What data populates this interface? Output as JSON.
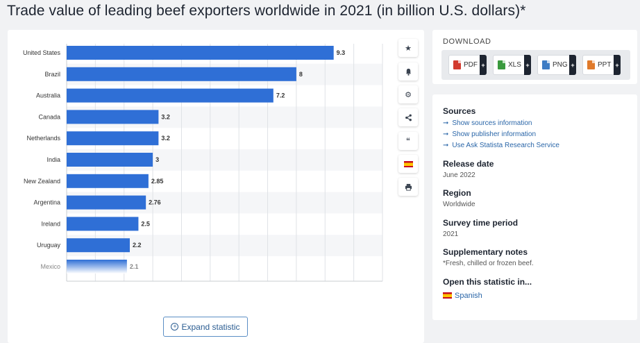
{
  "page": {
    "title": "Trade value of leading beef exporters worldwide in 2021 (in billion U.S. dollars)*"
  },
  "chart_data": {
    "type": "bar",
    "orientation": "horizontal",
    "categories": [
      "United States",
      "Brazil",
      "Australia",
      "Canada",
      "Netherlands",
      "India",
      "New Zealand",
      "Argentina",
      "Ireland",
      "Uruguay",
      "Mexico"
    ],
    "values": [
      9.3,
      8,
      7.2,
      3.2,
      3.2,
      3,
      2.85,
      2.76,
      2.5,
      2.2,
      2.1
    ],
    "value_labels": [
      "9.3",
      "8",
      "7.2",
      "3.2",
      "3.2",
      "3",
      "2.85",
      "2.76",
      "2.5",
      "2.2",
      "2.1"
    ],
    "xlim": [
      0,
      11
    ],
    "bar_color": "#2f6fd6",
    "grid": true
  },
  "chart_actions": {
    "expand_label": "Expand statistic",
    "tools": [
      "star-icon",
      "bell-icon",
      "gear-icon",
      "share-icon",
      "quote-icon",
      "flag-icon",
      "print-icon"
    ]
  },
  "download": {
    "title": "DOWNLOAD",
    "buttons": [
      {
        "label": "PDF",
        "icon": "pdf-file-icon",
        "color": "#d23b2f"
      },
      {
        "label": "XLS",
        "icon": "xls-file-icon",
        "color": "#3a9a3e"
      },
      {
        "label": "PNG",
        "icon": "png-file-icon",
        "color": "#3d7cc4"
      },
      {
        "label": "PPT",
        "icon": "ppt-file-icon",
        "color": "#e07a2b"
      }
    ],
    "plus_label": "+"
  },
  "sources": {
    "title": "Sources",
    "links": [
      "Show sources information",
      "Show publisher information",
      "Use Ask Statista Research Service"
    ]
  },
  "release": {
    "title": "Release date",
    "value": "June 2022"
  },
  "region": {
    "title": "Region",
    "value": "Worldwide"
  },
  "survey": {
    "title": "Survey time period",
    "value": "2021"
  },
  "notes": {
    "title": "Supplementary notes",
    "value": "*Fresh, chilled or frozen beef."
  },
  "open_in": {
    "title": "Open this statistic in...",
    "language": "Spanish"
  },
  "colors": {
    "accent": "#2a66a8",
    "bar": "#2f6fd6",
    "dark": "#1d2430"
  }
}
